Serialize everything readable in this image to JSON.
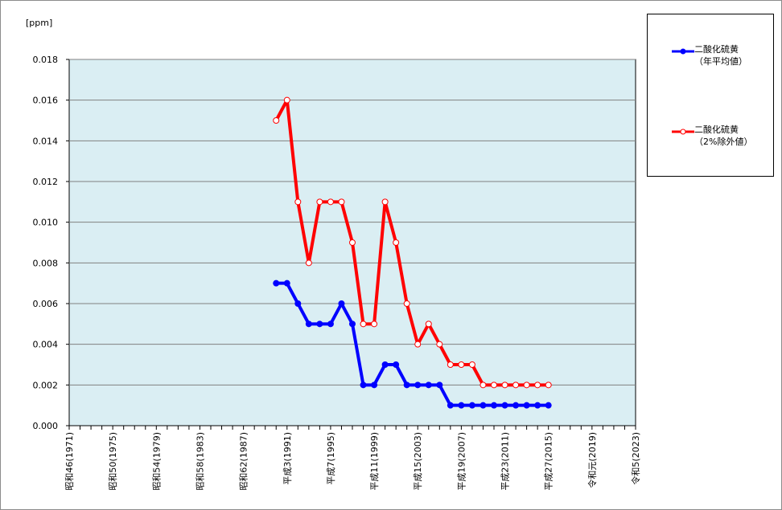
{
  "chart_data": {
    "type": "line",
    "ylabel": "[ppm]",
    "ylim": [
      0,
      0.018
    ],
    "yticks": [
      "0.000",
      "0.002",
      "0.004",
      "0.006",
      "0.008",
      "0.010",
      "0.012",
      "0.014",
      "0.016",
      "0.018"
    ],
    "ytick_values": [
      0,
      0.002,
      0.004,
      0.006,
      0.008,
      0.01,
      0.012,
      0.014,
      0.016,
      0.018
    ],
    "x_range": [
      1971,
      2023
    ],
    "xtick_years": [
      1971,
      1975,
      1979,
      1983,
      1987,
      1991,
      1995,
      1999,
      2003,
      2007,
      2011,
      2015,
      2019,
      2023
    ],
    "xtick_labels": [
      "昭和46(1971)",
      "昭和50(1975)",
      "昭和54(1979)",
      "昭和58(1983)",
      "昭和62(1987)",
      "平成3(1991)",
      "平成7(1995)",
      "平成11(1999)",
      "平成15(2003)",
      "平成19(2007)",
      "平成23(2011)",
      "平成27(2015)",
      "令和元(2019)",
      "令和5(2023)"
    ],
    "grid": true,
    "legend_position": "top-right",
    "series": [
      {
        "name": "二酸化硫黄\n（年平均値）",
        "label_line1": "二酸化硫黄",
        "label_line2": "（年平均値）",
        "color": "#0000FF",
        "marker": "filled-circle",
        "x": [
          1990,
          1991,
          1992,
          1993,
          1994,
          1995,
          1996,
          1997,
          1998,
          1999,
          2000,
          2001,
          2002,
          2003,
          2004,
          2005,
          2006,
          2007,
          2008,
          2009,
          2010,
          2011,
          2012,
          2013,
          2014,
          2015
        ],
        "values": [
          0.007,
          0.007,
          0.006,
          0.005,
          0.005,
          0.005,
          0.006,
          0.005,
          0.002,
          0.002,
          0.003,
          0.003,
          0.002,
          0.002,
          0.002,
          0.002,
          0.001,
          0.001,
          0.001,
          0.001,
          0.001,
          0.001,
          0.001,
          0.001,
          0.001,
          0.001
        ]
      },
      {
        "name": "二酸化硫黄\n（2%除外値）",
        "label_line1": "二酸化硫黄",
        "label_line2": "（2%除外値）",
        "color": "#FF0000",
        "marker": "open-circle",
        "x": [
          1990,
          1991,
          1992,
          1993,
          1994,
          1995,
          1996,
          1997,
          1998,
          1999,
          2000,
          2001,
          2002,
          2003,
          2004,
          2005,
          2006,
          2007,
          2008,
          2009,
          2010,
          2011,
          2012,
          2013,
          2014,
          2015
        ],
        "values": [
          0.015,
          0.016,
          0.011,
          0.008,
          0.011,
          0.011,
          0.011,
          0.009,
          0.005,
          0.005,
          0.011,
          0.009,
          0.006,
          0.004,
          0.005,
          0.004,
          0.003,
          0.003,
          0.003,
          0.002,
          0.002,
          0.002,
          0.002,
          0.002,
          0.002,
          0.002
        ]
      }
    ]
  },
  "colors": {
    "plot_background": "#DAEEF3",
    "gridline": "#808080"
  }
}
